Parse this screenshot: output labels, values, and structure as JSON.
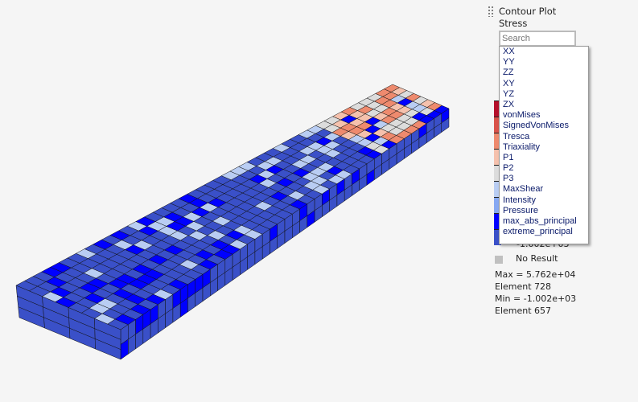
{
  "panel": {
    "title": "Contour Plot",
    "subtitle": "Stress",
    "search_placeholder": "Search"
  },
  "dropdown_options": [
    "XX",
    "YY",
    "ZZ",
    "XY",
    "YZ",
    "ZX",
    "vonMises",
    "SignedVonMises",
    "Tresca",
    "Triaxiality",
    "P1",
    "P2",
    "P3",
    "MaxShear",
    "Intensity",
    "Pressure",
    "max_abs_principal",
    "extreme_principal"
  ],
  "legend": {
    "colors": [
      "#b5102b",
      "#d9534a",
      "#ee8a6e",
      "#f5c1ad",
      "#dcdcdc",
      "#b9cdf3",
      "#86a8f2",
      "#0000ff",
      "#3a50c8"
    ],
    "min_label": "-1.002e+03",
    "no_result_label": "No Result",
    "no_result_color": "#c0c0c0"
  },
  "stats": {
    "max": "Max =  5.762e+04",
    "max_element": "Element 728",
    "min": "Min = -1.002e+03",
    "min_element": "Element 657"
  }
}
